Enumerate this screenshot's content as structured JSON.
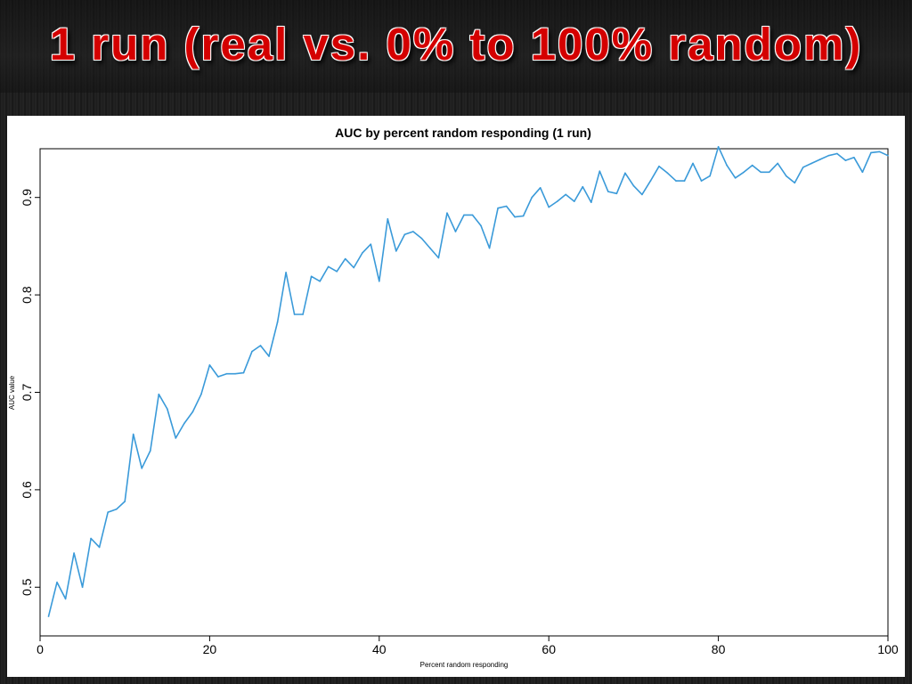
{
  "slide": {
    "title": "1 run (real vs. 0% to 100% random)"
  },
  "colors": {
    "title": "#d40000",
    "line": "#3a9ad9",
    "background": "#1a1a1a"
  },
  "chart_data": {
    "type": "line",
    "title": "AUC by percent random responding (1 run)",
    "xlabel": "Percent random responding",
    "ylabel": "AUC value",
    "xlim": [
      0,
      100
    ],
    "ylim": [
      0.45,
      0.95
    ],
    "xticks": [
      0,
      20,
      40,
      60,
      80,
      100
    ],
    "yticks": [
      0.5,
      0.6,
      0.7,
      0.8,
      0.9
    ],
    "grid": false,
    "series": [
      {
        "x": [
          1,
          2,
          3,
          4,
          5,
          6,
          7,
          8,
          9,
          10,
          11,
          12,
          13,
          14,
          15,
          16,
          17,
          18,
          19,
          20,
          21,
          22,
          23,
          24,
          25,
          26,
          27,
          28,
          29,
          30,
          31,
          32,
          33,
          34,
          35,
          36,
          37,
          38,
          39,
          40,
          41,
          42,
          43,
          44,
          45,
          46,
          47,
          48,
          49,
          50,
          51,
          52,
          53,
          54,
          55,
          56,
          57,
          58,
          59,
          60,
          61,
          62,
          63,
          64,
          65,
          66,
          67,
          68,
          69,
          70,
          71,
          72,
          73,
          74,
          75,
          76,
          77,
          78,
          79,
          80,
          81,
          82,
          83,
          84,
          85,
          86,
          87,
          88,
          89,
          90,
          91,
          92,
          93,
          94,
          95,
          96,
          97,
          98,
          99,
          100
        ],
        "values": [
          0.47,
          0.505,
          0.488,
          0.535,
          0.5,
          0.55,
          0.541,
          0.577,
          0.58,
          0.588,
          0.657,
          0.622,
          0.64,
          0.698,
          0.683,
          0.653,
          0.668,
          0.68,
          0.698,
          0.728,
          0.716,
          0.719,
          0.719,
          0.72,
          0.742,
          0.748,
          0.737,
          0.772,
          0.823,
          0.78,
          0.78,
          0.819,
          0.814,
          0.829,
          0.824,
          0.837,
          0.828,
          0.843,
          0.852,
          0.814,
          0.878,
          0.845,
          0.862,
          0.865,
          0.858,
          0.848,
          0.838,
          0.884,
          0.865,
          0.882,
          0.882,
          0.871,
          0.848,
          0.889,
          0.891,
          0.88,
          0.881,
          0.9,
          0.91,
          0.89,
          0.896,
          0.903,
          0.896,
          0.911,
          0.895,
          0.927,
          0.906,
          0.904,
          0.925,
          0.912,
          0.903,
          0.917,
          0.932,
          0.925,
          0.917,
          0.917,
          0.935,
          0.917,
          0.922,
          0.952,
          0.933,
          0.92,
          0.926,
          0.933,
          0.926,
          0.926,
          0.935,
          0.922,
          0.915,
          0.931,
          0.935,
          0.939,
          0.943,
          0.945,
          0.938,
          0.941,
          0.926,
          0.946,
          0.947,
          0.943
        ]
      }
    ]
  }
}
